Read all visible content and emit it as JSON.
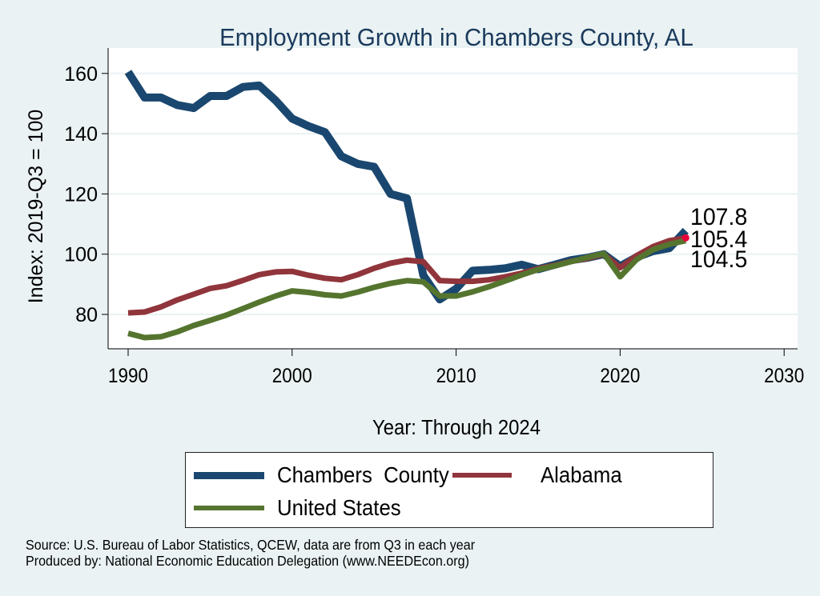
{
  "colors": {
    "background": "#eaf2f3",
    "plot_background": "#ffffff",
    "grid": "#eaf2f3",
    "title": "#1a3a5c",
    "chambers": "#1a476f",
    "alabama": "#90353b",
    "united_states": "#55752f",
    "end_marker": "#e8003a"
  },
  "chart_data": {
    "type": "line",
    "title": "Employment Growth in Chambers County, AL",
    "xlabel": "Year: Through 2024",
    "ylabel": "Index: 2019-Q3 = 100",
    "xlim": [
      1990,
      2030
    ],
    "ylim": [
      70,
      165
    ],
    "x_ticks": [
      1990,
      2000,
      2010,
      2020,
      2030
    ],
    "x_tick_labels": [
      "1990",
      "2000",
      "2010",
      "2020",
      "2030"
    ],
    "y_ticks": [
      80,
      100,
      120,
      140,
      160
    ],
    "y_tick_labels": [
      "80",
      "100",
      "120",
      "140",
      "160"
    ],
    "grid": true,
    "legend_position": "bottom",
    "x": [
      1990,
      1991,
      1992,
      1993,
      1994,
      1995,
      1996,
      1997,
      1998,
      1999,
      2000,
      2001,
      2002,
      2003,
      2004,
      2005,
      2006,
      2007,
      2008,
      2009,
      2010,
      2011,
      2012,
      2013,
      2014,
      2015,
      2016,
      2017,
      2018,
      2019,
      2020,
      2021,
      2022,
      2023,
      2024
    ],
    "series": [
      {
        "name": "Chambers  County",
        "key": "chambers",
        "values": [
          160.5,
          152,
          152,
          149.5,
          148.5,
          152.5,
          152.5,
          155.5,
          156,
          151,
          145,
          142.5,
          140.5,
          132.5,
          130,
          129,
          120,
          118.5,
          93,
          85,
          88.5,
          94.5,
          94.8,
          95.3,
          96.5,
          95,
          96.5,
          98,
          98.8,
          100,
          96,
          99,
          101,
          102,
          107.8
        ],
        "end_label": "107.8"
      },
      {
        "name": "Alabama",
        "key": "alabama",
        "values": [
          80.5,
          80.8,
          82.5,
          84.8,
          86.7,
          88.6,
          89.5,
          91.3,
          93.2,
          94.1,
          94.3,
          93,
          92,
          91.5,
          93.2,
          95.3,
          97,
          98,
          97.5,
          91.2,
          91,
          91,
          91.5,
          92.5,
          93.7,
          95.2,
          96.3,
          97.6,
          98.6,
          100,
          95.5,
          99.5,
          102.5,
          104.5,
          105.4
        ],
        "end_label": "105.4"
      },
      {
        "name": "United States",
        "key": "united_states",
        "values": [
          73.7,
          72.3,
          72.6,
          74.2,
          76.3,
          78,
          79.8,
          81.9,
          84.1,
          86.1,
          87.8,
          87.3,
          86.5,
          86.1,
          87.4,
          89,
          90.3,
          91.2,
          90.8,
          86.1,
          86.1,
          87.5,
          89.2,
          91.1,
          93.1,
          94.9,
          96.1,
          97.5,
          98.9,
          100.2,
          92.5,
          98.2,
          101.5,
          103.3,
          104.5
        ],
        "end_label": "104.5"
      }
    ]
  },
  "legend": {
    "items": [
      {
        "label": "Chambers  County",
        "color_key": "chambers"
      },
      {
        "label": "Alabama",
        "color_key": "alabama"
      },
      {
        "label": "United States",
        "color_key": "united_states"
      }
    ]
  },
  "footer": {
    "source": "Source: U.S. Bureau of Labor Statistics, QCEW, data are from Q3 in each year",
    "produced_by": "Produced by: National Economic Education Delegation (www.NEEDEcon.org)"
  }
}
